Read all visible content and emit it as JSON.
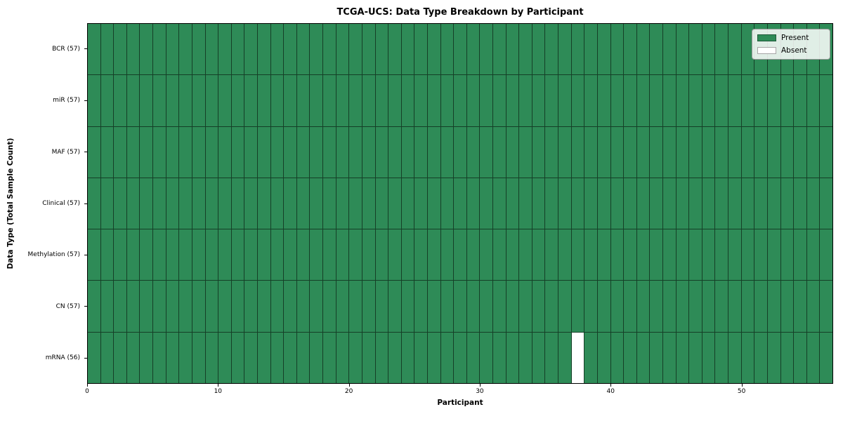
{
  "colors": {
    "present": "#2e8b57",
    "absent": "#ffffff",
    "grid_line": "#153f27",
    "spine": "#000000"
  },
  "chart_data": {
    "type": "heatmap",
    "title": "TCGA-UCS: Data Type Breakdown by Participant",
    "xlabel": "Participant",
    "ylabel": "Data Type (Total Sample Count)",
    "n_participants": 57,
    "xlim": [
      0,
      57
    ],
    "x_ticks": [
      0,
      10,
      20,
      30,
      40,
      50
    ],
    "grid": true,
    "legend_position": "upper right",
    "rows": [
      {
        "data_type": "BCR",
        "label": "BCR (57)",
        "total": 57,
        "absent_participants": []
      },
      {
        "data_type": "miR",
        "label": "miR (57)",
        "total": 57,
        "absent_participants": []
      },
      {
        "data_type": "MAF",
        "label": "MAF (57)",
        "total": 57,
        "absent_participants": []
      },
      {
        "data_type": "Clinical",
        "label": "Clinical (57)",
        "total": 57,
        "absent_participants": []
      },
      {
        "data_type": "Methylation",
        "label": "Methylation (57)",
        "total": 57,
        "absent_participants": []
      },
      {
        "data_type": "CN",
        "label": "CN (57)",
        "total": 57,
        "absent_participants": []
      },
      {
        "data_type": "mRNA",
        "label": "mRNA (56)",
        "total": 56,
        "absent_participants": [
          37
        ]
      }
    ],
    "legend": [
      {
        "label": "Present",
        "color": "#2e8b57"
      },
      {
        "label": "Absent",
        "color": "#ffffff"
      }
    ]
  }
}
